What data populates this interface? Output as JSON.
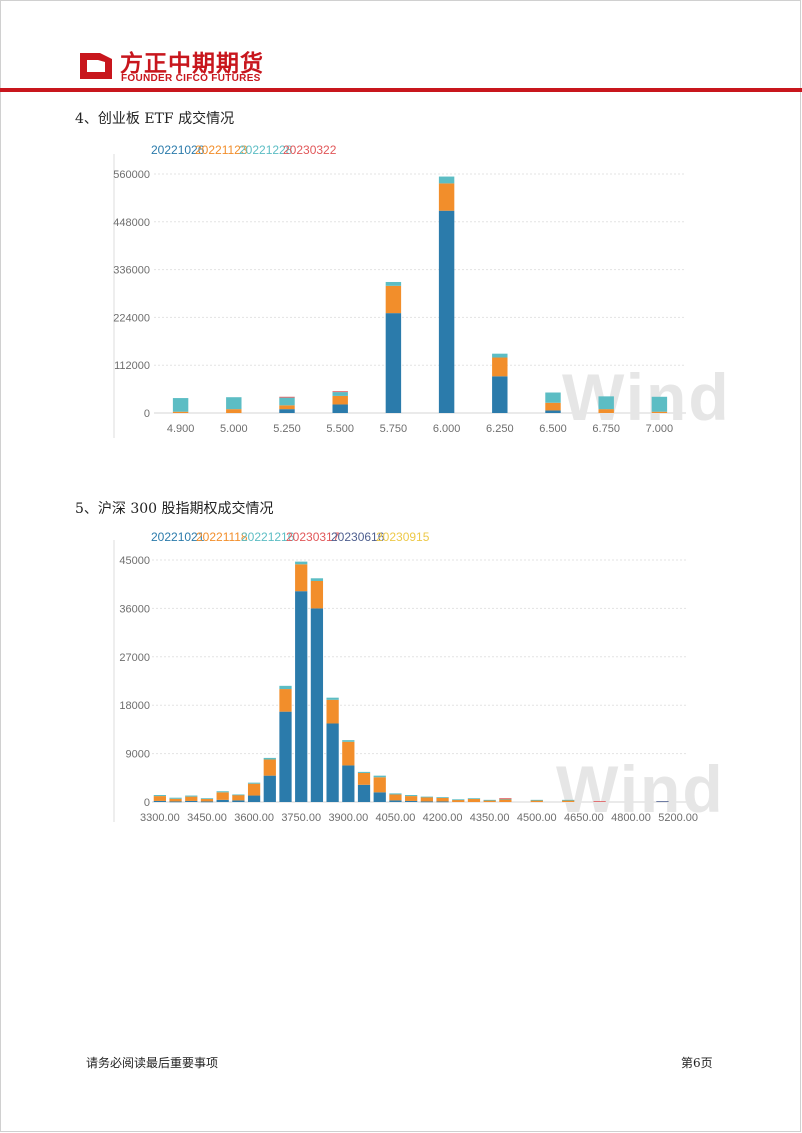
{
  "header": {
    "company_cn": "方正中期期货",
    "company_en": "FOUNDER CIFCO FUTURES",
    "brand_color": "#c8161d"
  },
  "sections": [
    {
      "title": "4、创业板 ETF 成交情况"
    },
    {
      "title": "5、沪深 300 股指期权成交情况"
    }
  ],
  "watermark": "Wind",
  "footer": {
    "left": "请务必阅读最后重要事项",
    "right": "第6页"
  },
  "chart_data": [
    {
      "type": "bar",
      "stacked": true,
      "title": "",
      "xlabel": "",
      "ylabel": "",
      "ylim": [
        0,
        560000
      ],
      "yticks": [
        "0",
        "112000",
        "224000",
        "336000",
        "448000",
        "560000"
      ],
      "grid": true,
      "legend_position": "top-left",
      "categories": [
        "4.900",
        "5.000",
        "5.250",
        "5.500",
        "5.750",
        "6.000",
        "6.250",
        "6.500",
        "6.750",
        "7.000"
      ],
      "series": [
        {
          "name": "20221026",
          "color": "#2b7bab",
          "values": [
            0,
            0,
            9000,
            20000,
            234000,
            474000,
            86000,
            6000,
            0,
            0
          ]
        },
        {
          "name": "20221123",
          "color": "#f28e2b",
          "values": [
            3000,
            9000,
            9000,
            20000,
            64000,
            64000,
            44000,
            18000,
            9000,
            3000
          ]
        },
        {
          "name": "20221228",
          "color": "#5cbdc4",
          "values": [
            32000,
            28000,
            18000,
            9000,
            9000,
            16000,
            9000,
            24000,
            30000,
            35000
          ]
        },
        {
          "name": "20230322",
          "color": "#e15759",
          "values": [
            0,
            0,
            2000,
            2000,
            0,
            0,
            0,
            0,
            0,
            0
          ]
        }
      ]
    },
    {
      "type": "bar",
      "stacked": true,
      "title": "",
      "xlabel": "",
      "ylabel": "",
      "ylim": [
        0,
        45000
      ],
      "yticks": [
        "0",
        "9000",
        "18000",
        "27000",
        "36000",
        "45000"
      ],
      "grid": true,
      "legend_position": "top-left",
      "x_tick_labels": [
        "3300.00",
        "3450.00",
        "3600.00",
        "3750.00",
        "3900.00",
        "4050.00",
        "4200.00",
        "4350.00",
        "4500.00",
        "4650.00",
        "4800.00",
        "5200.00"
      ],
      "categories": [
        "3300",
        "3350",
        "3400",
        "3450",
        "3500",
        "3550",
        "3600",
        "3650",
        "3700",
        "3750",
        "3800",
        "3850",
        "3900",
        "3950",
        "4000",
        "4050",
        "4100",
        "4150",
        "4200",
        "4250",
        "4300",
        "4350",
        "4400",
        "4450",
        "4500",
        "4550",
        "4600",
        "4650",
        "4700",
        "4750",
        "4800",
        "4850",
        "4900",
        "5200"
      ],
      "series": [
        {
          "name": "20221021",
          "color": "#2b7bab",
          "values": [
            200,
            100,
            200,
            100,
            400,
            300,
            1200,
            4900,
            16800,
            39200,
            36000,
            14600,
            6800,
            3200,
            1800,
            300,
            200,
            100,
            100,
            0,
            0,
            0,
            0,
            0,
            0,
            0,
            0,
            0,
            0,
            0,
            0,
            0,
            0,
            0
          ]
        },
        {
          "name": "20221118",
          "color": "#f28e2b",
          "values": [
            900,
            500,
            800,
            500,
            1400,
            1000,
            2200,
            3000,
            4200,
            5000,
            5100,
            4400,
            4400,
            2200,
            2800,
            1100,
            900,
            800,
            700,
            400,
            600,
            300,
            500,
            0,
            300,
            0,
            300,
            0,
            0,
            0,
            0,
            0,
            0,
            0
          ]
        },
        {
          "name": "20221216",
          "color": "#5cbdc4",
          "values": [
            200,
            200,
            200,
            100,
            200,
            100,
            200,
            300,
            600,
            500,
            500,
            400,
            300,
            200,
            300,
            200,
            200,
            100,
            100,
            100,
            100,
            100,
            100,
            0,
            100,
            0,
            100,
            0,
            0,
            0,
            0,
            0,
            0,
            0
          ]
        },
        {
          "name": "20230317",
          "color": "#e15759",
          "values": [
            0,
            0,
            0,
            0,
            0,
            0,
            0,
            0,
            0,
            0,
            0,
            0,
            0,
            0,
            0,
            0,
            0,
            0,
            0,
            0,
            0,
            0,
            100,
            0,
            0,
            0,
            0,
            0,
            150,
            0,
            0,
            0,
            0,
            0
          ]
        },
        {
          "name": "20230616",
          "color": "#4e5f8f",
          "values": [
            0,
            0,
            0,
            0,
            0,
            0,
            0,
            0,
            0,
            0,
            0,
            0,
            0,
            0,
            0,
            0,
            0,
            0,
            0,
            0,
            0,
            0,
            0,
            0,
            0,
            0,
            0,
            0,
            0,
            0,
            0,
            0,
            150,
            0
          ]
        },
        {
          "name": "20230915",
          "color": "#edc948",
          "values": [
            0,
            0,
            0,
            0,
            0,
            0,
            0,
            0,
            0,
            0,
            0,
            0,
            0,
            0,
            0,
            0,
            0,
            0,
            0,
            0,
            0,
            0,
            0,
            0,
            0,
            0,
            0,
            0,
            0,
            0,
            0,
            0,
            0,
            0
          ]
        }
      ]
    }
  ]
}
